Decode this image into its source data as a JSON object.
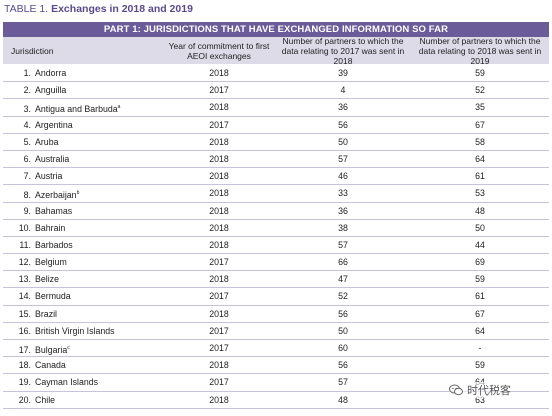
{
  "caption": {
    "label": "TABLE 1.",
    "title": "Exchanges in 2018 and 2019"
  },
  "part_header": "PART 1: JURISDICTIONS THAT HAVE EXCHANGED INFORMATION SO FAR",
  "columns": {
    "jurisdiction": "Jurisdiction",
    "year": "Year of commitment to first AEOI exchanges",
    "partners_2017": "Number of partners to which the data relating to 2017 was sent in 2018",
    "partners_2018": "Number of partners to which the data relating to 2018 was sent in 2019"
  },
  "rows": [
    {
      "num": "1.",
      "name": "Andorra",
      "sup": "",
      "year": "2018",
      "p2017": "39",
      "p2018": "59"
    },
    {
      "num": "2.",
      "name": "Anguilla",
      "sup": "",
      "year": "2017",
      "p2017": "4",
      "p2018": "52"
    },
    {
      "num": "3.",
      "name": "Antigua and Barbuda",
      "sup": "a",
      "year": "2018",
      "p2017": "36",
      "p2018": "35"
    },
    {
      "num": "4.",
      "name": "Argentina",
      "sup": "",
      "year": "2017",
      "p2017": "56",
      "p2018": "67"
    },
    {
      "num": "5.",
      "name": "Aruba",
      "sup": "",
      "year": "2018",
      "p2017": "50",
      "p2018": "58"
    },
    {
      "num": "6.",
      "name": "Australia",
      "sup": "",
      "year": "2018",
      "p2017": "57",
      "p2018": "64"
    },
    {
      "num": "7.",
      "name": "Austria",
      "sup": "",
      "year": "2018",
      "p2017": "46",
      "p2018": "61"
    },
    {
      "num": "8.",
      "name": "Azerbaijan",
      "sup": "b",
      "year": "2018",
      "p2017": "33",
      "p2018": "53"
    },
    {
      "num": "9.",
      "name": "Bahamas",
      "sup": "",
      "year": "2018",
      "p2017": "36",
      "p2018": "48"
    },
    {
      "num": "10.",
      "name": "Bahrain",
      "sup": "",
      "year": "2018",
      "p2017": "38",
      "p2018": "50"
    },
    {
      "num": "11.",
      "name": "Barbados",
      "sup": "",
      "year": "2018",
      "p2017": "57",
      "p2018": "44"
    },
    {
      "num": "12.",
      "name": "Belgium",
      "sup": "",
      "year": "2017",
      "p2017": "66",
      "p2018": "69"
    },
    {
      "num": "13.",
      "name": "Belize",
      "sup": "",
      "year": "2018",
      "p2017": "47",
      "p2018": "59"
    },
    {
      "num": "14.",
      "name": "Bermuda",
      "sup": "",
      "year": "2017",
      "p2017": "52",
      "p2018": "61"
    },
    {
      "num": "15.",
      "name": "Brazil",
      "sup": "",
      "year": "2018",
      "p2017": "56",
      "p2018": "67"
    },
    {
      "num": "16.",
      "name": "British Virgin Islands",
      "sup": "",
      "year": "2017",
      "p2017": "50",
      "p2018": "64"
    },
    {
      "num": "17.",
      "name": "Bulgaria",
      "sup": "c",
      "year": "2017",
      "p2017": "60",
      "p2018": "-"
    },
    {
      "num": "18.",
      "name": "Canada",
      "sup": "",
      "year": "2018",
      "p2017": "56",
      "p2018": "59"
    },
    {
      "num": "19.",
      "name": "Cayman Islands",
      "sup": "",
      "year": "2017",
      "p2017": "57",
      "p2018": "64"
    },
    {
      "num": "20.",
      "name": "Chile",
      "sup": "",
      "year": "2018",
      "p2017": "48",
      "p2018": "63"
    }
  ],
  "watermark": {
    "icon": "wechat-icon",
    "text": "时代税客"
  },
  "colors": {
    "header_bg": "#6b5b98",
    "subheader_bg": "#dedbe9",
    "caption": "#5a4a8c"
  }
}
